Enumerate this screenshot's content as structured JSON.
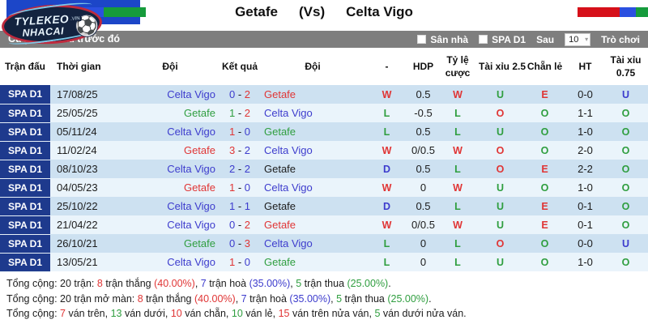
{
  "top": {
    "league_badge": "SPA D1",
    "home_team": "Getafe",
    "vs": "(Vs)",
    "away_team": "Celta Vigo"
  },
  "logo": {
    "line1": "TYLEKEO",
    "line2": "NHACAI",
    "tag": ".VIN",
    "ball_icon": "⚽"
  },
  "strip": {
    "label": "Cược đối đầu trước đó"
  },
  "filterbar": {
    "home_filter_label": "Sân nhà",
    "league_filter_label": "SPA D1",
    "after_label": "Sau",
    "select_value": "10",
    "select_caret": "▾",
    "games_label": "Trò chơi"
  },
  "colors": {
    "red": "#e03535",
    "green": "#2f9e3f",
    "blue": "#3d3ccd",
    "black": "#1c1c1c",
    "league_navy": "#1e3a8d",
    "row_odd": "#cde1f1",
    "row_even": "#eaf4fb",
    "bar_gray": "#7e7e7e",
    "badge_blue": "#1c46c8",
    "flag_red": "#d6101a",
    "flag_blue": "#2b50e0",
    "flag_green": "#169b3c"
  },
  "table": {
    "headers": [
      "Trận đấu",
      "Thời gian",
      "Đội",
      "Kết quả",
      "Đội",
      "-",
      "HDP",
      "Tỷ lệ cược",
      "Tài xỉu 2.5",
      "Chẵn lẻ",
      "HT",
      "Tài xỉu 0.75"
    ],
    "rows": [
      {
        "league": "SPA D1",
        "date": "17/08/25",
        "home": [
          "Celta Vigo",
          "blue"
        ],
        "score": [
          [
            "0",
            "blue"
          ],
          [
            "2",
            "red"
          ]
        ],
        "away": [
          "Getafe",
          "red"
        ],
        "res": [
          "W",
          "red"
        ],
        "hdp": "0.5",
        "bet": [
          "W",
          "red"
        ],
        "ou25": [
          "U",
          "green"
        ],
        "oe": [
          "E",
          "red"
        ],
        "ht": "0-0",
        "ou075": [
          "U",
          "blue"
        ]
      },
      {
        "league": "SPA D1",
        "date": "25/05/25",
        "home": [
          "Getafe",
          "green"
        ],
        "score": [
          [
            "1",
            "green"
          ],
          [
            "2",
            "red"
          ]
        ],
        "away": [
          "Celta Vigo",
          "blue"
        ],
        "res": [
          "L",
          "green"
        ],
        "hdp": "-0.5",
        "bet": [
          "L",
          "green"
        ],
        "ou25": [
          "O",
          "red"
        ],
        "oe": [
          "O",
          "green"
        ],
        "ht": "1-1",
        "ou075": [
          "O",
          "green"
        ]
      },
      {
        "league": "SPA D1",
        "date": "05/11/24",
        "home": [
          "Celta Vigo",
          "blue"
        ],
        "score": [
          [
            "1",
            "red"
          ],
          [
            "0",
            "blue"
          ]
        ],
        "away": [
          "Getafe",
          "green"
        ],
        "res": [
          "L",
          "green"
        ],
        "hdp": "0.5",
        "bet": [
          "L",
          "green"
        ],
        "ou25": [
          "U",
          "green"
        ],
        "oe": [
          "O",
          "green"
        ],
        "ht": "1-0",
        "ou075": [
          "O",
          "green"
        ]
      },
      {
        "league": "SPA D1",
        "date": "11/02/24",
        "home": [
          "Getafe",
          "red"
        ],
        "score": [
          [
            "3",
            "red"
          ],
          [
            "2",
            "blue"
          ]
        ],
        "away": [
          "Celta Vigo",
          "blue"
        ],
        "res": [
          "W",
          "red"
        ],
        "hdp": "0/0.5",
        "bet": [
          "W",
          "red"
        ],
        "ou25": [
          "O",
          "red"
        ],
        "oe": [
          "O",
          "green"
        ],
        "ht": "2-0",
        "ou075": [
          "O",
          "green"
        ]
      },
      {
        "league": "SPA D1",
        "date": "08/10/23",
        "home": [
          "Celta Vigo",
          "blue"
        ],
        "score": [
          [
            "2",
            "blue"
          ],
          [
            "2",
            "blue"
          ]
        ],
        "away": [
          "Getafe",
          "black"
        ],
        "res": [
          "D",
          "blue"
        ],
        "hdp": "0.5",
        "bet": [
          "L",
          "green"
        ],
        "ou25": [
          "O",
          "red"
        ],
        "oe": [
          "E",
          "red"
        ],
        "ht": "2-2",
        "ou075": [
          "O",
          "green"
        ]
      },
      {
        "league": "SPA D1",
        "date": "04/05/23",
        "home": [
          "Getafe",
          "red"
        ],
        "score": [
          [
            "1",
            "red"
          ],
          [
            "0",
            "blue"
          ]
        ],
        "away": [
          "Celta Vigo",
          "blue"
        ],
        "res": [
          "W",
          "red"
        ],
        "hdp": "0",
        "bet": [
          "W",
          "red"
        ],
        "ou25": [
          "U",
          "green"
        ],
        "oe": [
          "O",
          "green"
        ],
        "ht": "1-0",
        "ou075": [
          "O",
          "green"
        ]
      },
      {
        "league": "SPA D1",
        "date": "25/10/22",
        "home": [
          "Celta Vigo",
          "blue"
        ],
        "score": [
          [
            "1",
            "blue"
          ],
          [
            "1",
            "blue"
          ]
        ],
        "away": [
          "Getafe",
          "black"
        ],
        "res": [
          "D",
          "blue"
        ],
        "hdp": "0.5",
        "bet": [
          "L",
          "green"
        ],
        "ou25": [
          "U",
          "green"
        ],
        "oe": [
          "E",
          "red"
        ],
        "ht": "0-1",
        "ou075": [
          "O",
          "green"
        ]
      },
      {
        "league": "SPA D1",
        "date": "21/04/22",
        "home": [
          "Celta Vigo",
          "blue"
        ],
        "score": [
          [
            "0",
            "blue"
          ],
          [
            "2",
            "red"
          ]
        ],
        "away": [
          "Getafe",
          "red"
        ],
        "res": [
          "W",
          "red"
        ],
        "hdp": "0/0.5",
        "bet": [
          "W",
          "red"
        ],
        "ou25": [
          "U",
          "green"
        ],
        "oe": [
          "E",
          "red"
        ],
        "ht": "0-1",
        "ou075": [
          "O",
          "green"
        ]
      },
      {
        "league": "SPA D1",
        "date": "26/10/21",
        "home": [
          "Getafe",
          "green"
        ],
        "score": [
          [
            "0",
            "blue"
          ],
          [
            "3",
            "red"
          ]
        ],
        "away": [
          "Celta Vigo",
          "blue"
        ],
        "res": [
          "L",
          "green"
        ],
        "hdp": "0",
        "bet": [
          "L",
          "green"
        ],
        "ou25": [
          "O",
          "red"
        ],
        "oe": [
          "O",
          "green"
        ],
        "ht": "0-0",
        "ou075": [
          "U",
          "blue"
        ]
      },
      {
        "league": "SPA D1",
        "date": "13/05/21",
        "home": [
          "Celta Vigo",
          "blue"
        ],
        "score": [
          [
            "1",
            "red"
          ],
          [
            "0",
            "blue"
          ]
        ],
        "away": [
          "Getafe",
          "green"
        ],
        "res": [
          "L",
          "green"
        ],
        "hdp": "0",
        "bet": [
          "L",
          "green"
        ],
        "ou25": [
          "U",
          "green"
        ],
        "oe": [
          "O",
          "green"
        ],
        "ht": "1-0",
        "ou075": [
          "O",
          "green"
        ]
      }
    ]
  },
  "summary": {
    "lines": [
      [
        [
          "Tổng cộng: 20 trận: ",
          "black"
        ],
        [
          "8",
          "red"
        ],
        [
          " trận thắng ",
          "black"
        ],
        [
          "(40.00%)",
          "red"
        ],
        [
          ", ",
          "black"
        ],
        [
          "7",
          "blue"
        ],
        [
          " trận hoà ",
          "black"
        ],
        [
          "(35.00%)",
          "blue"
        ],
        [
          ", ",
          "black"
        ],
        [
          "5",
          "green"
        ],
        [
          " trận thua ",
          "black"
        ],
        [
          "(25.00%)",
          "green"
        ],
        [
          ".",
          "black"
        ]
      ],
      [
        [
          "Tổng cộng: 20 trận mở màn: ",
          "black"
        ],
        [
          "8",
          "red"
        ],
        [
          " trận thắng ",
          "black"
        ],
        [
          "(40.00%)",
          "red"
        ],
        [
          ", ",
          "black"
        ],
        [
          "7",
          "blue"
        ],
        [
          " trận hoà ",
          "black"
        ],
        [
          "(35.00%)",
          "blue"
        ],
        [
          ", ",
          "black"
        ],
        [
          "5",
          "green"
        ],
        [
          " trận thua ",
          "black"
        ],
        [
          "(25.00%)",
          "green"
        ],
        [
          ".",
          "black"
        ]
      ],
      [
        [
          "Tổng cộng: ",
          "black"
        ],
        [
          "7",
          "red"
        ],
        [
          " ván trên, ",
          "black"
        ],
        [
          "13",
          "green"
        ],
        [
          " ván dưới, ",
          "black"
        ],
        [
          "10",
          "red"
        ],
        [
          " ván chẵn, ",
          "black"
        ],
        [
          "10",
          "green"
        ],
        [
          " ván lẻ, ",
          "black"
        ],
        [
          "15",
          "red"
        ],
        [
          " ván trên nửa ván, ",
          "black"
        ],
        [
          "5",
          "green"
        ],
        [
          " ván dưới nửa ván.",
          "black"
        ]
      ]
    ]
  }
}
